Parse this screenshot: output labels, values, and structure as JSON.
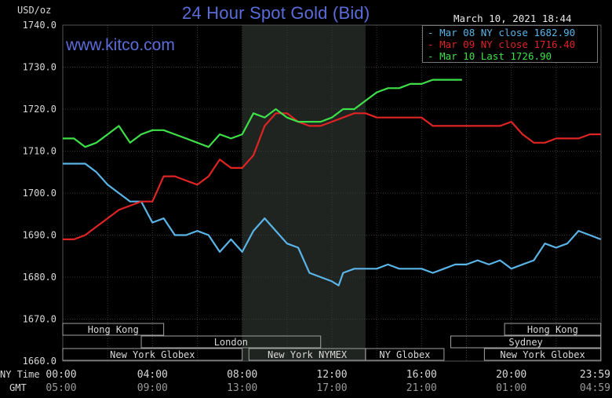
{
  "chart_data": {
    "type": "line",
    "title": "24 Hour Spot Gold (Bid)",
    "ylabel": "USD/oz",
    "ylim": [
      1660,
      1740
    ],
    "y_ticks": [
      "1740.0",
      "1730.0",
      "1720.0",
      "1710.0",
      "1700.0",
      "1690.0",
      "1680.0",
      "1670.0",
      "1660.0"
    ],
    "xlim": [
      0,
      24
    ],
    "x_ticks_ny": [
      "00:00",
      "04:00",
      "08:00",
      "12:00",
      "16:00",
      "20:00",
      "23:59"
    ],
    "x_ticks_gmt": [
      "05:00",
      "09:00",
      "13:00",
      "17:00",
      "21:00",
      "01:00",
      "04:59"
    ],
    "row_label_ny": "NY Time",
    "row_label_gmt": "GMT",
    "timestamp": "March 10, 2021 18:44",
    "watermark": "www.kitco.com",
    "grid": true,
    "legend_position": "top-right",
    "shaded_region": [
      8.0,
      13.5
    ],
    "sessions": [
      {
        "name": "Hong Kong",
        "row": 0,
        "start": 0,
        "end": 4.5
      },
      {
        "name": "Hong Kong",
        "row": 0,
        "start": 19.7,
        "end": 23.99
      },
      {
        "name": "London",
        "row": 1,
        "start": 3.5,
        "end": 11.5
      },
      {
        "name": "Sydney",
        "row": 1,
        "start": 17.3,
        "end": 23.99
      },
      {
        "name": "New York Globex",
        "row": 2,
        "start": 0,
        "end": 8.0
      },
      {
        "name": "New York NYMEX",
        "row": 2,
        "start": 8.3,
        "end": 13.5
      },
      {
        "name": "NY Globex",
        "row": 2,
        "start": 13.5,
        "end": 17.0
      },
      {
        "name": "New York Globex",
        "row": 2,
        "start": 18.8,
        "end": 23.99
      }
    ],
    "series": [
      {
        "name": "Mar 08 NY close 1682.90",
        "color": "#5ab4e8",
        "points": [
          [
            0,
            1707
          ],
          [
            0.5,
            1707
          ],
          [
            1,
            1707
          ],
          [
            1.5,
            1705
          ],
          [
            2,
            1702
          ],
          [
            2.5,
            1700
          ],
          [
            3,
            1698
          ],
          [
            3.5,
            1698
          ],
          [
            4,
            1693
          ],
          [
            4.5,
            1694
          ],
          [
            5,
            1690
          ],
          [
            5.5,
            1690
          ],
          [
            6,
            1691
          ],
          [
            6.5,
            1690
          ],
          [
            7,
            1686
          ],
          [
            7.5,
            1689
          ],
          [
            8,
            1686
          ],
          [
            8.5,
            1691
          ],
          [
            9,
            1694
          ],
          [
            9.5,
            1691
          ],
          [
            10,
            1688
          ],
          [
            10.5,
            1687
          ],
          [
            11,
            1681
          ],
          [
            11.5,
            1680
          ],
          [
            12,
            1679
          ],
          [
            12.3,
            1678
          ],
          [
            12.5,
            1681
          ],
          [
            13,
            1682
          ],
          [
            13.5,
            1682
          ],
          [
            14,
            1682
          ],
          [
            14.5,
            1683
          ],
          [
            15,
            1682
          ],
          [
            15.5,
            1682
          ],
          [
            16,
            1682
          ],
          [
            16.5,
            1681
          ],
          [
            17,
            1682
          ],
          [
            17.5,
            1683
          ],
          [
            18,
            1683
          ],
          [
            18.5,
            1684
          ],
          [
            19,
            1683
          ],
          [
            19.5,
            1684
          ],
          [
            20,
            1682
          ],
          [
            20.5,
            1683
          ],
          [
            21,
            1684
          ],
          [
            21.5,
            1688
          ],
          [
            22,
            1687
          ],
          [
            22.5,
            1688
          ],
          [
            23,
            1691
          ],
          [
            23.5,
            1690
          ],
          [
            23.99,
            1689
          ]
        ]
      },
      {
        "name": "Mar 09 NY close 1716.40",
        "color": "#e02424",
        "points": [
          [
            0,
            1689
          ],
          [
            0.5,
            1689
          ],
          [
            1,
            1690
          ],
          [
            1.5,
            1692
          ],
          [
            2,
            1694
          ],
          [
            2.5,
            1696
          ],
          [
            3,
            1697
          ],
          [
            3.5,
            1698
          ],
          [
            4,
            1698
          ],
          [
            4.5,
            1704
          ],
          [
            5,
            1704
          ],
          [
            5.5,
            1703
          ],
          [
            6,
            1702
          ],
          [
            6.5,
            1704
          ],
          [
            7,
            1708
          ],
          [
            7.5,
            1706
          ],
          [
            8,
            1706
          ],
          [
            8.5,
            1709
          ],
          [
            9,
            1716
          ],
          [
            9.5,
            1719
          ],
          [
            10,
            1719
          ],
          [
            10.5,
            1717
          ],
          [
            11,
            1716
          ],
          [
            11.5,
            1716
          ],
          [
            12,
            1717
          ],
          [
            12.5,
            1718
          ],
          [
            13,
            1719
          ],
          [
            13.5,
            1719
          ],
          [
            14,
            1718
          ],
          [
            14.5,
            1718
          ],
          [
            15,
            1718
          ],
          [
            15.5,
            1718
          ],
          [
            16,
            1718
          ],
          [
            16.5,
            1716
          ],
          [
            17,
            1716
          ],
          [
            17.5,
            1716
          ],
          [
            18,
            1716
          ],
          [
            18.5,
            1716
          ],
          [
            19,
            1716
          ],
          [
            19.5,
            1716
          ],
          [
            20,
            1717
          ],
          [
            20.5,
            1714
          ],
          [
            21,
            1712
          ],
          [
            21.5,
            1712
          ],
          [
            22,
            1713
          ],
          [
            22.5,
            1713
          ],
          [
            23,
            1713
          ],
          [
            23.5,
            1714
          ],
          [
            23.99,
            1714
          ]
        ]
      },
      {
        "name": "Mar 10 Last 1726.90",
        "color": "#3ee04a",
        "points": [
          [
            0,
            1713
          ],
          [
            0.5,
            1713
          ],
          [
            1,
            1711
          ],
          [
            1.5,
            1712
          ],
          [
            2,
            1714
          ],
          [
            2.5,
            1716
          ],
          [
            3,
            1712
          ],
          [
            3.5,
            1714
          ],
          [
            4,
            1715
          ],
          [
            4.5,
            1715
          ],
          [
            5,
            1714
          ],
          [
            5.5,
            1713
          ],
          [
            6,
            1712
          ],
          [
            6.5,
            1711
          ],
          [
            7,
            1714
          ],
          [
            7.5,
            1713
          ],
          [
            8,
            1714
          ],
          [
            8.5,
            1719
          ],
          [
            9,
            1718
          ],
          [
            9.5,
            1720
          ],
          [
            10,
            1718
          ],
          [
            10.5,
            1717
          ],
          [
            11,
            1717
          ],
          [
            11.5,
            1717
          ],
          [
            12,
            1718
          ],
          [
            12.5,
            1720
          ],
          [
            13,
            1720
          ],
          [
            13.5,
            1722
          ],
          [
            14,
            1724
          ],
          [
            14.5,
            1725
          ],
          [
            15,
            1725
          ],
          [
            15.5,
            1726
          ],
          [
            16,
            1726
          ],
          [
            16.5,
            1727
          ],
          [
            17,
            1727
          ],
          [
            17.5,
            1727
          ],
          [
            17.8,
            1727
          ]
        ]
      }
    ]
  },
  "palette": {
    "background": "#000000",
    "plot_bg": "#000000",
    "shade": "#202420",
    "grid": "#3a3a3a",
    "axis_text": "#d8d8d8",
    "title": "#5a6cd8",
    "session_border": "#a0a0a0"
  }
}
